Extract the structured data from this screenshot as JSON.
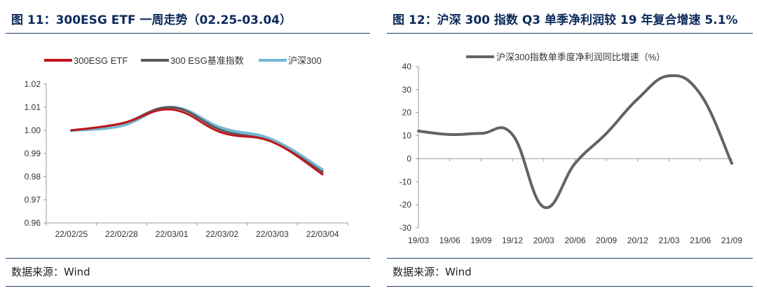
{
  "chart_data": [
    {
      "type": "line",
      "title": "图 11：300ESG ETF 一周走势（02.25-03.04）",
      "categories": [
        "22/02/25",
        "22/02/28",
        "22/03/01",
        "22/03/02",
        "22/03/03",
        "22/03/04"
      ],
      "series": [
        {
          "name": "300ESG ETF",
          "color": "#c0161e",
          "values": [
            1.0,
            1.003,
            1.009,
            0.999,
            0.995,
            0.981
          ]
        },
        {
          "name": "300 ESG基准指数",
          "color": "#595959",
          "values": [
            1.0,
            1.003,
            1.01,
            1.0,
            0.995,
            0.982
          ]
        },
        {
          "name": "沪深300",
          "color": "#74b7d6",
          "values": [
            1.0,
            1.002,
            1.01,
            1.001,
            0.996,
            0.983
          ]
        }
      ],
      "ylim": [
        0.96,
        1.02
      ],
      "yticks": [
        "0.96",
        "0.97",
        "0.98",
        "0.99",
        "1.00",
        "1.01",
        "1.02"
      ],
      "xlabel": "",
      "ylabel": "",
      "source": "数据来源：Wind"
    },
    {
      "type": "line",
      "title": "图 12：沪深 300 指数 Q3 单季净利润较 19 年复合增速 5.1%",
      "categories": [
        "19/03",
        "19/06",
        "19/09",
        "19/12",
        "20/03",
        "20/06",
        "20/09",
        "20/12",
        "21/03",
        "21/06",
        "21/09"
      ],
      "series": [
        {
          "name": "沪深300指数单季度净利润同比增速（%）",
          "color": "#636363",
          "values": [
            12,
            10.5,
            11,
            10.5,
            -21,
            -2,
            11,
            26,
            36,
            28,
            -2
          ]
        }
      ],
      "ylim": [
        -30,
        40
      ],
      "yticks": [
        "-30",
        "-20",
        "-10",
        "0",
        "10",
        "20",
        "30",
        "40"
      ],
      "xlabel": "",
      "ylabel": "",
      "source": "数据来源：Wind"
    }
  ]
}
